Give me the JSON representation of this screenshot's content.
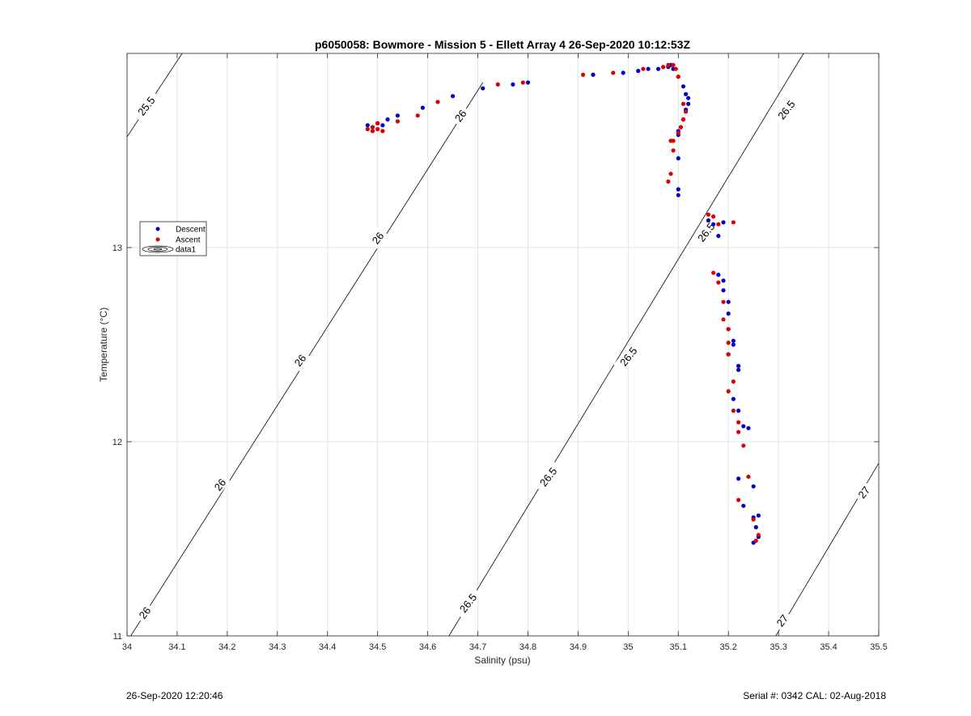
{
  "chart_data": {
    "type": "scatter",
    "title": "p6050058: Bowmore - Mission 5 - Ellett Array 4 26-Sep-2020 10:12:53Z",
    "xlabel": "Salinity (psu)",
    "ylabel": "Temperature (°C)",
    "xlim": [
      34,
      35.5
    ],
    "ylim": [
      11,
      14
    ],
    "x_ticks": [
      "34",
      "34.1",
      "34.2",
      "34.3",
      "34.4",
      "34.5",
      "34.6",
      "34.7",
      "34.8",
      "34.9",
      "35",
      "35.1",
      "35.2",
      "35.3",
      "35.4",
      "35.5"
    ],
    "y_ticks": [
      "11",
      "12",
      "13"
    ],
    "grid": true,
    "legend": {
      "placement": "left",
      "entries": [
        "Descent",
        "Ascent",
        "data1"
      ]
    },
    "colors": {
      "Descent": "#0000cc",
      "Ascent": "#dd0000"
    },
    "series": [
      {
        "name": "Descent",
        "x": [
          34.48,
          34.49,
          34.5,
          34.51,
          34.52,
          34.54,
          34.59,
          34.65,
          34.71,
          34.77,
          34.8,
          34.93,
          34.99,
          35.02,
          35.04,
          35.06,
          35.07,
          35.08,
          35.085,
          35.09,
          35.1,
          35.11,
          35.115,
          35.12,
          35.12,
          35.115,
          35.11,
          35.105,
          35.1,
          35.1,
          35.1,
          35.1,
          35.1,
          35.16,
          35.17,
          35.18,
          35.19,
          35.18,
          35.19,
          35.19,
          35.2,
          35.2,
          35.2,
          35.21,
          35.21,
          35.2,
          35.22,
          35.22,
          35.21,
          35.22,
          35.23,
          35.24,
          35.22,
          35.23,
          35.25,
          35.25,
          35.26,
          35.255,
          35.26,
          35.25
        ],
        "y": [
          13.63,
          13.62,
          13.64,
          13.63,
          13.66,
          13.68,
          13.72,
          13.78,
          13.82,
          13.84,
          13.85,
          13.89,
          13.9,
          13.91,
          13.92,
          13.92,
          13.93,
          13.93,
          13.94,
          13.92,
          13.88,
          13.83,
          13.79,
          13.77,
          13.74,
          13.71,
          13.66,
          13.62,
          13.6,
          13.58,
          13.46,
          13.3,
          13.27,
          13.14,
          13.12,
          13.06,
          13.13,
          12.86,
          12.83,
          12.78,
          12.72,
          12.66,
          12.58,
          12.52,
          12.5,
          12.45,
          12.39,
          12.37,
          12.22,
          12.16,
          12.08,
          12.07,
          11.81,
          11.67,
          11.77,
          11.61,
          11.62,
          11.56,
          11.51,
          11.48
        ],
        "marker": "dot"
      },
      {
        "name": "Ascent",
        "x": [
          34.48,
          34.49,
          34.5,
          34.51,
          34.49,
          34.5,
          34.54,
          34.58,
          34.62,
          34.74,
          34.79,
          34.91,
          34.97,
          35.03,
          35.07,
          35.08,
          35.09,
          35.095,
          35.1,
          35.11,
          35.115,
          35.11,
          35.105,
          35.1,
          35.09,
          35.085,
          35.09,
          35.08,
          35.085,
          35.16,
          35.17,
          35.18,
          35.21,
          35.17,
          35.18,
          35.19,
          35.19,
          35.2,
          35.2,
          35.2,
          35.21,
          35.21,
          35.22,
          35.2,
          35.22,
          35.23,
          35.22,
          35.24,
          35.25,
          35.26,
          35.255
        ],
        "y": [
          13.61,
          13.6,
          13.61,
          13.6,
          13.62,
          13.64,
          13.65,
          13.68,
          13.75,
          13.84,
          13.85,
          13.89,
          13.9,
          13.92,
          13.93,
          13.94,
          13.94,
          13.92,
          13.88,
          13.74,
          13.7,
          13.66,
          13.62,
          13.59,
          13.55,
          13.55,
          13.5,
          13.34,
          13.38,
          13.17,
          13.16,
          13.12,
          13.13,
          12.87,
          12.82,
          12.72,
          12.63,
          12.58,
          12.51,
          12.45,
          12.31,
          12.16,
          12.1,
          12.26,
          12.05,
          11.98,
          11.7,
          11.82,
          11.6,
          11.52,
          11.49
        ],
        "marker": "dot"
      }
    ],
    "contours": [
      {
        "label": "25.5",
        "from": [
          34.0,
          13.57
        ],
        "to": [
          34.11,
          14.0
        ]
      },
      {
        "label": "26",
        "from": [
          34.0,
          10.97
        ],
        "to": [
          34.71,
          13.85
        ]
      },
      {
        "label": "26.5",
        "from": [
          34.64,
          10.99
        ],
        "to": [
          35.35,
          14.0
        ]
      },
      {
        "label": "27",
        "from": [
          35.29,
          10.98
        ],
        "to": [
          35.5,
          11.89
        ]
      }
    ],
    "contour_labels": [
      {
        "text": "25.5",
        "x": 34.038,
        "y": 13.73,
        "angle": -52
      },
      {
        "text": "26",
        "x": 34.035,
        "y": 11.12,
        "angle": -52
      },
      {
        "text": "26",
        "x": 34.185,
        "y": 11.78,
        "angle": -52
      },
      {
        "text": "26",
        "x": 34.345,
        "y": 12.42,
        "angle": -52
      },
      {
        "text": "26",
        "x": 34.5,
        "y": 13.05,
        "angle": -52
      },
      {
        "text": "26",
        "x": 34.665,
        "y": 13.68,
        "angle": -52
      },
      {
        "text": "26.5",
        "x": 34.68,
        "y": 11.17,
        "angle": -52
      },
      {
        "text": "26.5",
        "x": 34.84,
        "y": 11.82,
        "angle": -52
      },
      {
        "text": "26.5",
        "x": 35.0,
        "y": 12.44,
        "angle": -52
      },
      {
        "text": "26.5",
        "x": 35.155,
        "y": 13.08,
        "angle": -52
      },
      {
        "text": "26.5",
        "x": 35.315,
        "y": 13.71,
        "angle": -52
      },
      {
        "text": "27",
        "x": 35.307,
        "y": 11.08,
        "angle": -52
      },
      {
        "text": "27",
        "x": 35.47,
        "y": 11.74,
        "angle": -52
      }
    ]
  },
  "footer": {
    "timestamp": "26-Sep-2020 12:20:46",
    "serial": "Serial #: 0342  CAL: 02-Aug-2018"
  }
}
